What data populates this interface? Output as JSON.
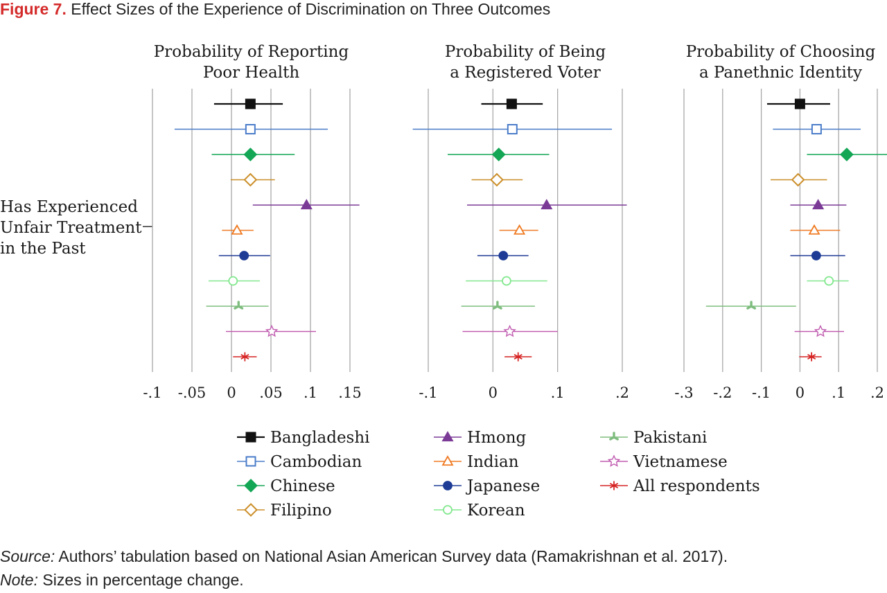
{
  "figure": {
    "label": "Figure 7.",
    "title": "Effect Sizes of the Experience of Discrimination on Three Outcomes"
  },
  "row_label": [
    "Has Experienced",
    "Unfair Treatment",
    "in the Past"
  ],
  "colors": {
    "Bangladeshi": "#111111",
    "Cambodian": "#4a7cc9",
    "Chinese": "#13a655",
    "Filipino": "#cc8f2a",
    "Hmong": "#7a3a96",
    "Indian": "#ef7a22",
    "Japanese": "#1e3c96",
    "Korean": "#82e88e",
    "Pakistani": "#7fbd7f",
    "Vietnamese": "#c05cb0",
    "All respondents": "#d62222"
  },
  "markers": {
    "Bangladeshi": "square-filled",
    "Cambodian": "square-open",
    "Chinese": "diamond-filled",
    "Filipino": "diamond-open",
    "Hmong": "triangle-filled",
    "Indian": "triangle-open",
    "Japanese": "circle-filled",
    "Korean": "circle-open",
    "Pakistani": "tri-star",
    "Vietnamese": "star-open",
    "All respondents": "x-star"
  },
  "chart_data": [
    {
      "type": "scatter",
      "title": [
        "Probability of Reporting",
        "Poor Health"
      ],
      "xlim": [
        -0.1,
        0.15
      ],
      "xticks": [
        -0.1,
        -0.05,
        0,
        0.05,
        0.1,
        0.15
      ],
      "xtick_labels": [
        "-.1",
        "-.05",
        "0",
        ".05",
        ".1",
        ".15"
      ],
      "grid": "vertical",
      "series": [
        {
          "name": "Bangladeshi",
          "est": 0.024,
          "lo": -0.022,
          "hi": 0.065
        },
        {
          "name": "Cambodian",
          "est": 0.024,
          "lo": -0.072,
          "hi": 0.122
        },
        {
          "name": "Chinese",
          "est": 0.024,
          "lo": -0.025,
          "hi": 0.08
        },
        {
          "name": "Filipino",
          "est": 0.024,
          "lo": -0.001,
          "hi": 0.055
        },
        {
          "name": "Hmong",
          "est": 0.095,
          "lo": 0.027,
          "hi": 0.162
        },
        {
          "name": "Indian",
          "est": 0.007,
          "lo": -0.012,
          "hi": 0.028
        },
        {
          "name": "Japanese",
          "est": 0.016,
          "lo": -0.016,
          "hi": 0.049
        },
        {
          "name": "Korean",
          "est": 0.002,
          "lo": -0.029,
          "hi": 0.036
        },
        {
          "name": "Pakistani",
          "est": 0.009,
          "lo": -0.032,
          "hi": 0.047
        },
        {
          "name": "Vietnamese",
          "est": 0.051,
          "lo": -0.007,
          "hi": 0.107
        },
        {
          "name": "All respondents",
          "est": 0.017,
          "lo": 0.002,
          "hi": 0.032
        }
      ]
    },
    {
      "type": "scatter",
      "title": [
        "Probability of Being",
        "a Registered Voter"
      ],
      "xlim": [
        -0.1,
        0.2
      ],
      "xticks": [
        -0.1,
        0,
        0.1,
        0.2
      ],
      "xtick_labels": [
        "-.1",
        "0",
        ".1",
        ".2"
      ],
      "grid": "vertical",
      "series": [
        {
          "name": "Bangladeshi",
          "est": 0.029,
          "lo": -0.018,
          "hi": 0.077
        },
        {
          "name": "Cambodian",
          "est": 0.03,
          "lo": -0.124,
          "hi": 0.184
        },
        {
          "name": "Chinese",
          "est": 0.009,
          "lo": -0.07,
          "hi": 0.087
        },
        {
          "name": "Filipino",
          "est": 0.006,
          "lo": -0.033,
          "hi": 0.046
        },
        {
          "name": "Hmong",
          "est": 0.083,
          "lo": -0.04,
          "hi": 0.207
        },
        {
          "name": "Indian",
          "est": 0.041,
          "lo": 0.01,
          "hi": 0.07
        },
        {
          "name": "Japanese",
          "est": 0.016,
          "lo": -0.024,
          "hi": 0.055
        },
        {
          "name": "Korean",
          "est": 0.021,
          "lo": -0.042,
          "hi": 0.084
        },
        {
          "name": "Pakistani",
          "est": 0.007,
          "lo": -0.049,
          "hi": 0.065
        },
        {
          "name": "Vietnamese",
          "est": 0.026,
          "lo": -0.047,
          "hi": 0.1
        },
        {
          "name": "All respondents",
          "est": 0.039,
          "lo": 0.018,
          "hi": 0.06
        }
      ]
    },
    {
      "type": "scatter",
      "title": [
        "Probability of Choosing",
        "a Panethnic Identity"
      ],
      "xlim": [
        -0.3,
        0.2
      ],
      "xticks": [
        -0.3,
        -0.2,
        -0.1,
        0,
        0.1,
        0.2
      ],
      "xtick_labels": [
        "-.3",
        "-.2",
        "-.1",
        "0",
        ".1",
        ".2"
      ],
      "grid": "vertical",
      "series": [
        {
          "name": "Bangladeshi",
          "est": 0.0,
          "lo": -0.085,
          "hi": 0.078
        },
        {
          "name": "Cambodian",
          "est": 0.043,
          "lo": -0.07,
          "hi": 0.157
        },
        {
          "name": "Chinese",
          "est": 0.121,
          "lo": 0.018,
          "hi": 0.227
        },
        {
          "name": "Filipino",
          "est": -0.005,
          "lo": -0.076,
          "hi": 0.07
        },
        {
          "name": "Hmong",
          "est": 0.047,
          "lo": -0.025,
          "hi": 0.12
        },
        {
          "name": "Indian",
          "est": 0.037,
          "lo": -0.025,
          "hi": 0.104
        },
        {
          "name": "Japanese",
          "est": 0.042,
          "lo": -0.025,
          "hi": 0.117
        },
        {
          "name": "Korean",
          "est": 0.075,
          "lo": 0.018,
          "hi": 0.126
        },
        {
          "name": "Pakistani",
          "est": -0.126,
          "lo": -0.243,
          "hi": -0.01
        },
        {
          "name": "Vietnamese",
          "est": 0.053,
          "lo": -0.014,
          "hi": 0.114
        },
        {
          "name": "All respondents",
          "est": 0.03,
          "lo": -0.002,
          "hi": 0.056
        }
      ]
    }
  ],
  "legend": {
    "columns": [
      [
        "Bangladeshi",
        "Cambodian",
        "Chinese",
        "Filipino"
      ],
      [
        "Hmong",
        "Indian",
        "Japanese",
        "Korean"
      ],
      [
        "Pakistani",
        "Vietnamese",
        "All respondents"
      ]
    ]
  },
  "notes": {
    "source_label": "Source:",
    "source_text": " Authors’ tabulation based on National Asian American Survey data (Ramakrishnan et al. 2017).",
    "note_label": "Note:",
    "note_text": " Sizes in percentage change."
  }
}
